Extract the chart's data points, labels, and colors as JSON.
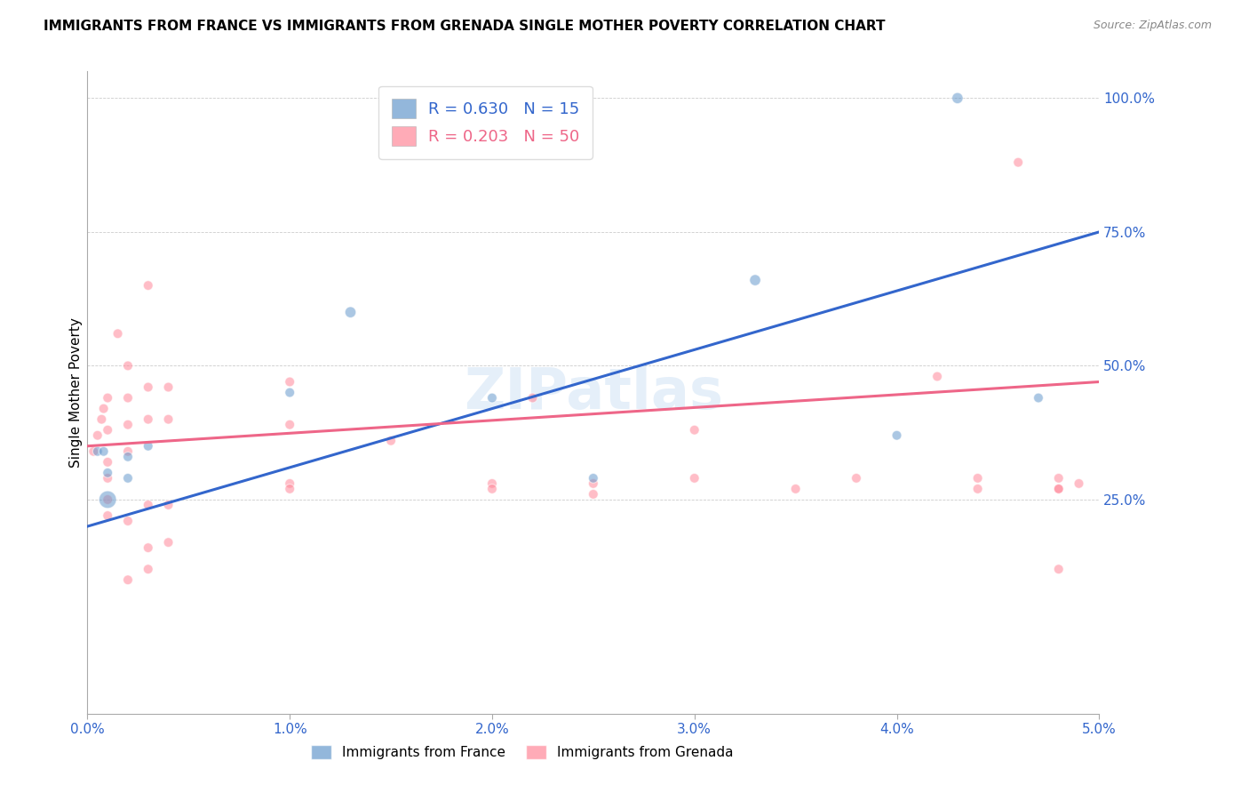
{
  "title": "IMMIGRANTS FROM FRANCE VS IMMIGRANTS FROM GRENADA SINGLE MOTHER POVERTY CORRELATION CHART",
  "source": "Source: ZipAtlas.com",
  "ylabel": "Single Mother Poverty",
  "xlim": [
    0.0,
    0.05
  ],
  "ylim": [
    -0.15,
    1.05
  ],
  "xticks": [
    0.0,
    0.01,
    0.02,
    0.03,
    0.04,
    0.05
  ],
  "xtick_labels": [
    "0.0%",
    "1.0%",
    "2.0%",
    "3.0%",
    "4.0%",
    "5.0%"
  ],
  "ytick_positions": [
    0.25,
    0.5,
    0.75,
    1.0
  ],
  "ytick_labels": [
    "25.0%",
    "50.0%",
    "75.0%",
    "100.0%"
  ],
  "france_color": "#6699CC",
  "grenada_color": "#FF8899",
  "france_line_color": "#3366CC",
  "grenada_line_color": "#EE6688",
  "france_R": 0.63,
  "france_N": 15,
  "grenada_R": 0.203,
  "grenada_N": 50,
  "france_line_x0": 0.0,
  "france_line_y0": 0.2,
  "france_line_x1": 0.05,
  "france_line_y1": 0.75,
  "grenada_line_x0": 0.0,
  "grenada_line_y0": 0.35,
  "grenada_line_x1": 0.05,
  "grenada_line_y1": 0.47,
  "france_x": [
    0.0005,
    0.0008,
    0.001,
    0.001,
    0.002,
    0.002,
    0.003,
    0.01,
    0.013,
    0.02,
    0.025,
    0.033,
    0.04,
    0.043,
    0.047
  ],
  "france_y": [
    0.34,
    0.34,
    0.3,
    0.25,
    0.33,
    0.29,
    0.35,
    0.45,
    0.6,
    0.44,
    0.29,
    0.66,
    0.37,
    1.0,
    0.44
  ],
  "france_size": [
    60,
    60,
    60,
    200,
    60,
    60,
    60,
    60,
    80,
    60,
    60,
    80,
    60,
    80,
    60
  ],
  "grenada_x": [
    0.0003,
    0.0005,
    0.0007,
    0.0008,
    0.001,
    0.001,
    0.001,
    0.001,
    0.001,
    0.001,
    0.0015,
    0.002,
    0.002,
    0.002,
    0.002,
    0.002,
    0.002,
    0.003,
    0.003,
    0.003,
    0.003,
    0.003,
    0.003,
    0.004,
    0.004,
    0.004,
    0.004,
    0.01,
    0.01,
    0.01,
    0.01,
    0.015,
    0.02,
    0.02,
    0.022,
    0.025,
    0.025,
    0.03,
    0.03,
    0.035,
    0.038,
    0.042,
    0.044,
    0.044,
    0.046,
    0.048,
    0.048,
    0.048,
    0.048,
    0.049
  ],
  "grenada_y": [
    0.34,
    0.37,
    0.4,
    0.42,
    0.44,
    0.38,
    0.32,
    0.29,
    0.25,
    0.22,
    0.56,
    0.5,
    0.44,
    0.39,
    0.34,
    0.21,
    0.1,
    0.65,
    0.46,
    0.4,
    0.24,
    0.16,
    0.12,
    0.46,
    0.4,
    0.24,
    0.17,
    0.47,
    0.39,
    0.28,
    0.27,
    0.36,
    0.28,
    0.27,
    0.44,
    0.28,
    0.26,
    0.38,
    0.29,
    0.27,
    0.29,
    0.48,
    0.29,
    0.27,
    0.88,
    0.29,
    0.27,
    0.27,
    0.12,
    0.28
  ],
  "grenada_size": [
    60,
    60,
    60,
    60,
    60,
    60,
    60,
    60,
    60,
    60,
    60,
    60,
    60,
    60,
    60,
    60,
    60,
    60,
    60,
    60,
    60,
    60,
    60,
    60,
    60,
    60,
    60,
    60,
    60,
    60,
    60,
    60,
    60,
    60,
    60,
    60,
    60,
    60,
    60,
    60,
    60,
    60,
    60,
    60,
    60,
    60,
    60,
    60,
    60,
    60
  ]
}
